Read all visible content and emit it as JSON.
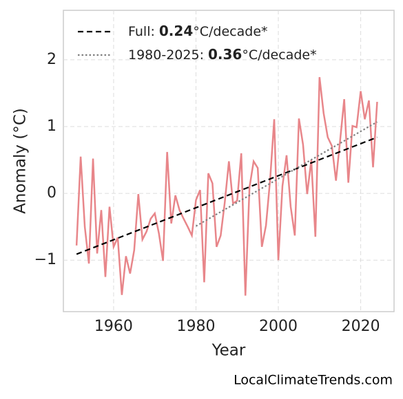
{
  "chart_data": {
    "type": "line",
    "x_label": "Year",
    "y_label": "Anomaly (°C)",
    "watermark": "LocalClimateTrends.com",
    "xlim": [
      1947.8,
      2028.1
    ],
    "ylim": [
      -1.77,
      2.74
    ],
    "xticks": [
      1960,
      1980,
      2000,
      2020
    ],
    "yticks": [
      {
        "value": -1,
        "label": "−1"
      },
      0,
      1,
      2
    ],
    "grid": true,
    "legend": "upper left",
    "series": [
      {
        "color": "#e8868a",
        "style": "solid",
        "x": [
          1951,
          1952,
          1953,
          1954,
          1955,
          1956,
          1957,
          1958,
          1959,
          1960,
          1961,
          1962,
          1963,
          1964,
          1965,
          1966,
          1967,
          1968,
          1969,
          1970,
          1971,
          1972,
          1973,
          1974,
          1975,
          1976,
          1977,
          1978,
          1979,
          1980,
          1981,
          1982,
          1983,
          1984,
          1985,
          1986,
          1987,
          1988,
          1989,
          1990,
          1991,
          1992,
          1993,
          1994,
          1995,
          1996,
          1997,
          1998,
          1999,
          2000,
          2001,
          2002,
          2003,
          2004,
          2005,
          2006,
          2007,
          2008,
          2009,
          2010,
          2011,
          2012,
          2013,
          2014,
          2015,
          2016,
          2017,
          2018,
          2019,
          2020,
          2021,
          2022,
          2023,
          2024
        ],
        "values": [
          -0.78,
          0.55,
          -0.5,
          -1.05,
          0.52,
          -0.9,
          -0.25,
          -1.25,
          -0.2,
          -0.8,
          -0.66,
          -1.52,
          -0.94,
          -1.2,
          -0.85,
          -0.01,
          -0.69,
          -0.57,
          -0.38,
          -0.3,
          -0.6,
          -1.01,
          0.62,
          -0.45,
          -0.03,
          -0.25,
          -0.38,
          -0.5,
          -0.63,
          -0.1,
          0.05,
          -1.33,
          0.3,
          0.15,
          -0.8,
          -0.63,
          -0.13,
          0.48,
          -0.15,
          -0.11,
          0.6,
          -1.53,
          0.09,
          0.48,
          0.38,
          -0.8,
          -0.48,
          0.2,
          1.11,
          -1.0,
          0.11,
          0.57,
          -0.2,
          -0.63,
          1.12,
          0.73,
          -0.01,
          0.5,
          -0.65,
          1.74,
          1.2,
          0.84,
          0.71,
          0.19,
          0.79,
          1.41,
          0.16,
          1.01,
          0.99,
          1.53,
          1.11,
          1.39,
          0.39,
          1.37
        ]
      },
      {
        "label": "Full:",
        "slope": 0.24,
        "unit": "°C/decade*",
        "color": "#000000",
        "style": "dashed",
        "x": [
          1951,
          2024
        ],
        "values": [
          -0.91,
          0.84
        ]
      },
      {
        "label": "1980-2025:",
        "slope": 0.36,
        "unit": "°C/decade*",
        "color": "#808080",
        "style": "dotted",
        "x": [
          1980,
          2024
        ],
        "values": [
          -0.49,
          1.07
        ]
      }
    ]
  }
}
